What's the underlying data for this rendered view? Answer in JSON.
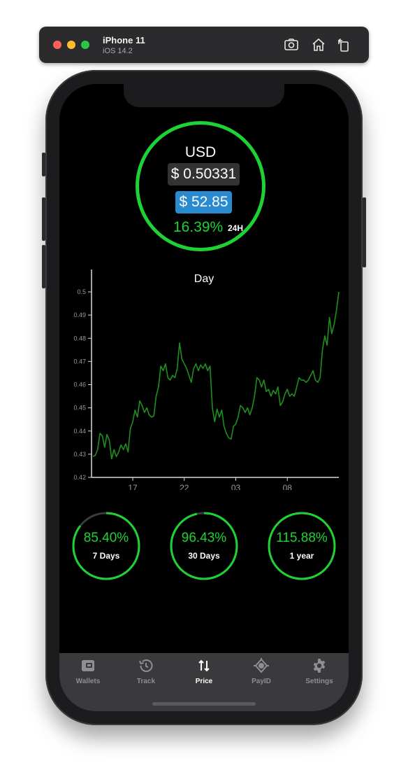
{
  "simulator": {
    "device_name": "iPhone 11",
    "os_version": "iOS 14.2",
    "icons": [
      "screenshot-icon",
      "home-icon",
      "rotate-icon"
    ]
  },
  "price": {
    "currency": "USD",
    "price": "$ 0.50331",
    "value": "$ 52.85",
    "change": "16.39%",
    "period": "24H"
  },
  "chart_data": {
    "type": "line",
    "title": "Day",
    "y_ticks": [
      "0.5",
      "0.49",
      "0.48",
      "0.47",
      "0.46",
      "0.45",
      "0.44",
      "0.43",
      "0.42"
    ],
    "x_ticks": [
      "17",
      "22",
      "03",
      "08"
    ],
    "ylim": [
      0.42,
      0.5
    ],
    "series_color": "#1f8f1f",
    "points": [
      [
        0,
        0.429
      ],
      [
        1,
        0.4295
      ],
      [
        2,
        0.432
      ],
      [
        3,
        0.439
      ],
      [
        4,
        0.438
      ],
      [
        5,
        0.433
      ],
      [
        6,
        0.4385
      ],
      [
        7,
        0.436
      ],
      [
        8,
        0.428
      ],
      [
        9,
        0.432
      ],
      [
        10,
        0.429
      ],
      [
        11,
        0.431
      ],
      [
        12,
        0.434
      ],
      [
        13,
        0.432
      ],
      [
        14,
        0.4345
      ],
      [
        15,
        0.431
      ],
      [
        16,
        0.441
      ],
      [
        17,
        0.444
      ],
      [
        18,
        0.449
      ],
      [
        19,
        0.446
      ],
      [
        20,
        0.453
      ],
      [
        21,
        0.451
      ],
      [
        22,
        0.448
      ],
      [
        23,
        0.45
      ],
      [
        24,
        0.447
      ],
      [
        25,
        0.446
      ],
      [
        26,
        0.4465
      ],
      [
        27,
        0.455
      ],
      [
        28,
        0.459
      ],
      [
        29,
        0.468
      ],
      [
        30,
        0.466
      ],
      [
        31,
        0.469
      ],
      [
        32,
        0.463
      ],
      [
        33,
        0.462
      ],
      [
        34,
        0.464
      ],
      [
        35,
        0.463
      ],
      [
        36,
        0.467
      ],
      [
        37,
        0.478
      ],
      [
        38,
        0.471
      ],
      [
        39,
        0.469
      ],
      [
        40,
        0.467
      ],
      [
        41,
        0.464
      ],
      [
        42,
        0.461
      ],
      [
        43,
        0.467
      ],
      [
        44,
        0.469
      ],
      [
        45,
        0.466
      ],
      [
        46,
        0.4685
      ],
      [
        47,
        0.467
      ],
      [
        48,
        0.469
      ],
      [
        49,
        0.466
      ],
      [
        50,
        0.468
      ],
      [
        51,
        0.45
      ],
      [
        52,
        0.444
      ],
      [
        53,
        0.4495
      ],
      [
        54,
        0.446
      ],
      [
        55,
        0.449
      ],
      [
        56,
        0.442
      ],
      [
        57,
        0.439
      ],
      [
        58,
        0.437
      ],
      [
        59,
        0.4365
      ],
      [
        60,
        0.442
      ],
      [
        61,
        0.443
      ],
      [
        62,
        0.446
      ],
      [
        63,
        0.451
      ],
      [
        64,
        0.45
      ],
      [
        65,
        0.448
      ],
      [
        66,
        0.45
      ],
      [
        67,
        0.447
      ],
      [
        68,
        0.45
      ],
      [
        69,
        0.455
      ],
      [
        70,
        0.463
      ],
      [
        71,
        0.462
      ],
      [
        72,
        0.459
      ],
      [
        73,
        0.462
      ],
      [
        74,
        0.457
      ],
      [
        75,
        0.458
      ],
      [
        76,
        0.455
      ],
      [
        77,
        0.4575
      ],
      [
        78,
        0.456
      ],
      [
        79,
        0.459
      ],
      [
        80,
        0.451
      ],
      [
        81,
        0.4525
      ],
      [
        82,
        0.456
      ],
      [
        83,
        0.458
      ],
      [
        84,
        0.455
      ],
      [
        85,
        0.456
      ],
      [
        86,
        0.455
      ],
      [
        87,
        0.459
      ],
      [
        88,
        0.463
      ],
      [
        89,
        0.462
      ],
      [
        90,
        0.462
      ],
      [
        91,
        0.461
      ],
      [
        92,
        0.462
      ],
      [
        93,
        0.464
      ],
      [
        94,
        0.466
      ],
      [
        95,
        0.462
      ],
      [
        96,
        0.461
      ],
      [
        97,
        0.463
      ],
      [
        98,
        0.475
      ],
      [
        99,
        0.481
      ],
      [
        100,
        0.477
      ],
      [
        101,
        0.489
      ],
      [
        102,
        0.482
      ],
      [
        103,
        0.486
      ],
      [
        104,
        0.492
      ],
      [
        105,
        0.5
      ]
    ],
    "x_tick_positions": [
      17,
      39,
      61,
      83
    ]
  },
  "stats": [
    {
      "percent": "85.40%",
      "label": "7 Days",
      "fill": 0.854
    },
    {
      "percent": "96.43%",
      "label": "30 Days",
      "fill": 0.9643
    },
    {
      "percent": "115.88%",
      "label": "1 year",
      "fill": 1.0
    }
  ],
  "tabs": [
    {
      "label": "Wallets",
      "icon": "wallet-icon",
      "active": false
    },
    {
      "label": "Track",
      "icon": "history-icon",
      "active": false
    },
    {
      "label": "Price",
      "icon": "arrows-updown-icon",
      "active": true
    },
    {
      "label": "PayID",
      "icon": "payid-icon",
      "active": false
    },
    {
      "label": "Settings",
      "icon": "gear-icon",
      "active": false
    }
  ],
  "colors": {
    "accent_green": "#1ed233",
    "value_blue": "#2a8ad0",
    "tab_bar": "#3a3a3c"
  }
}
